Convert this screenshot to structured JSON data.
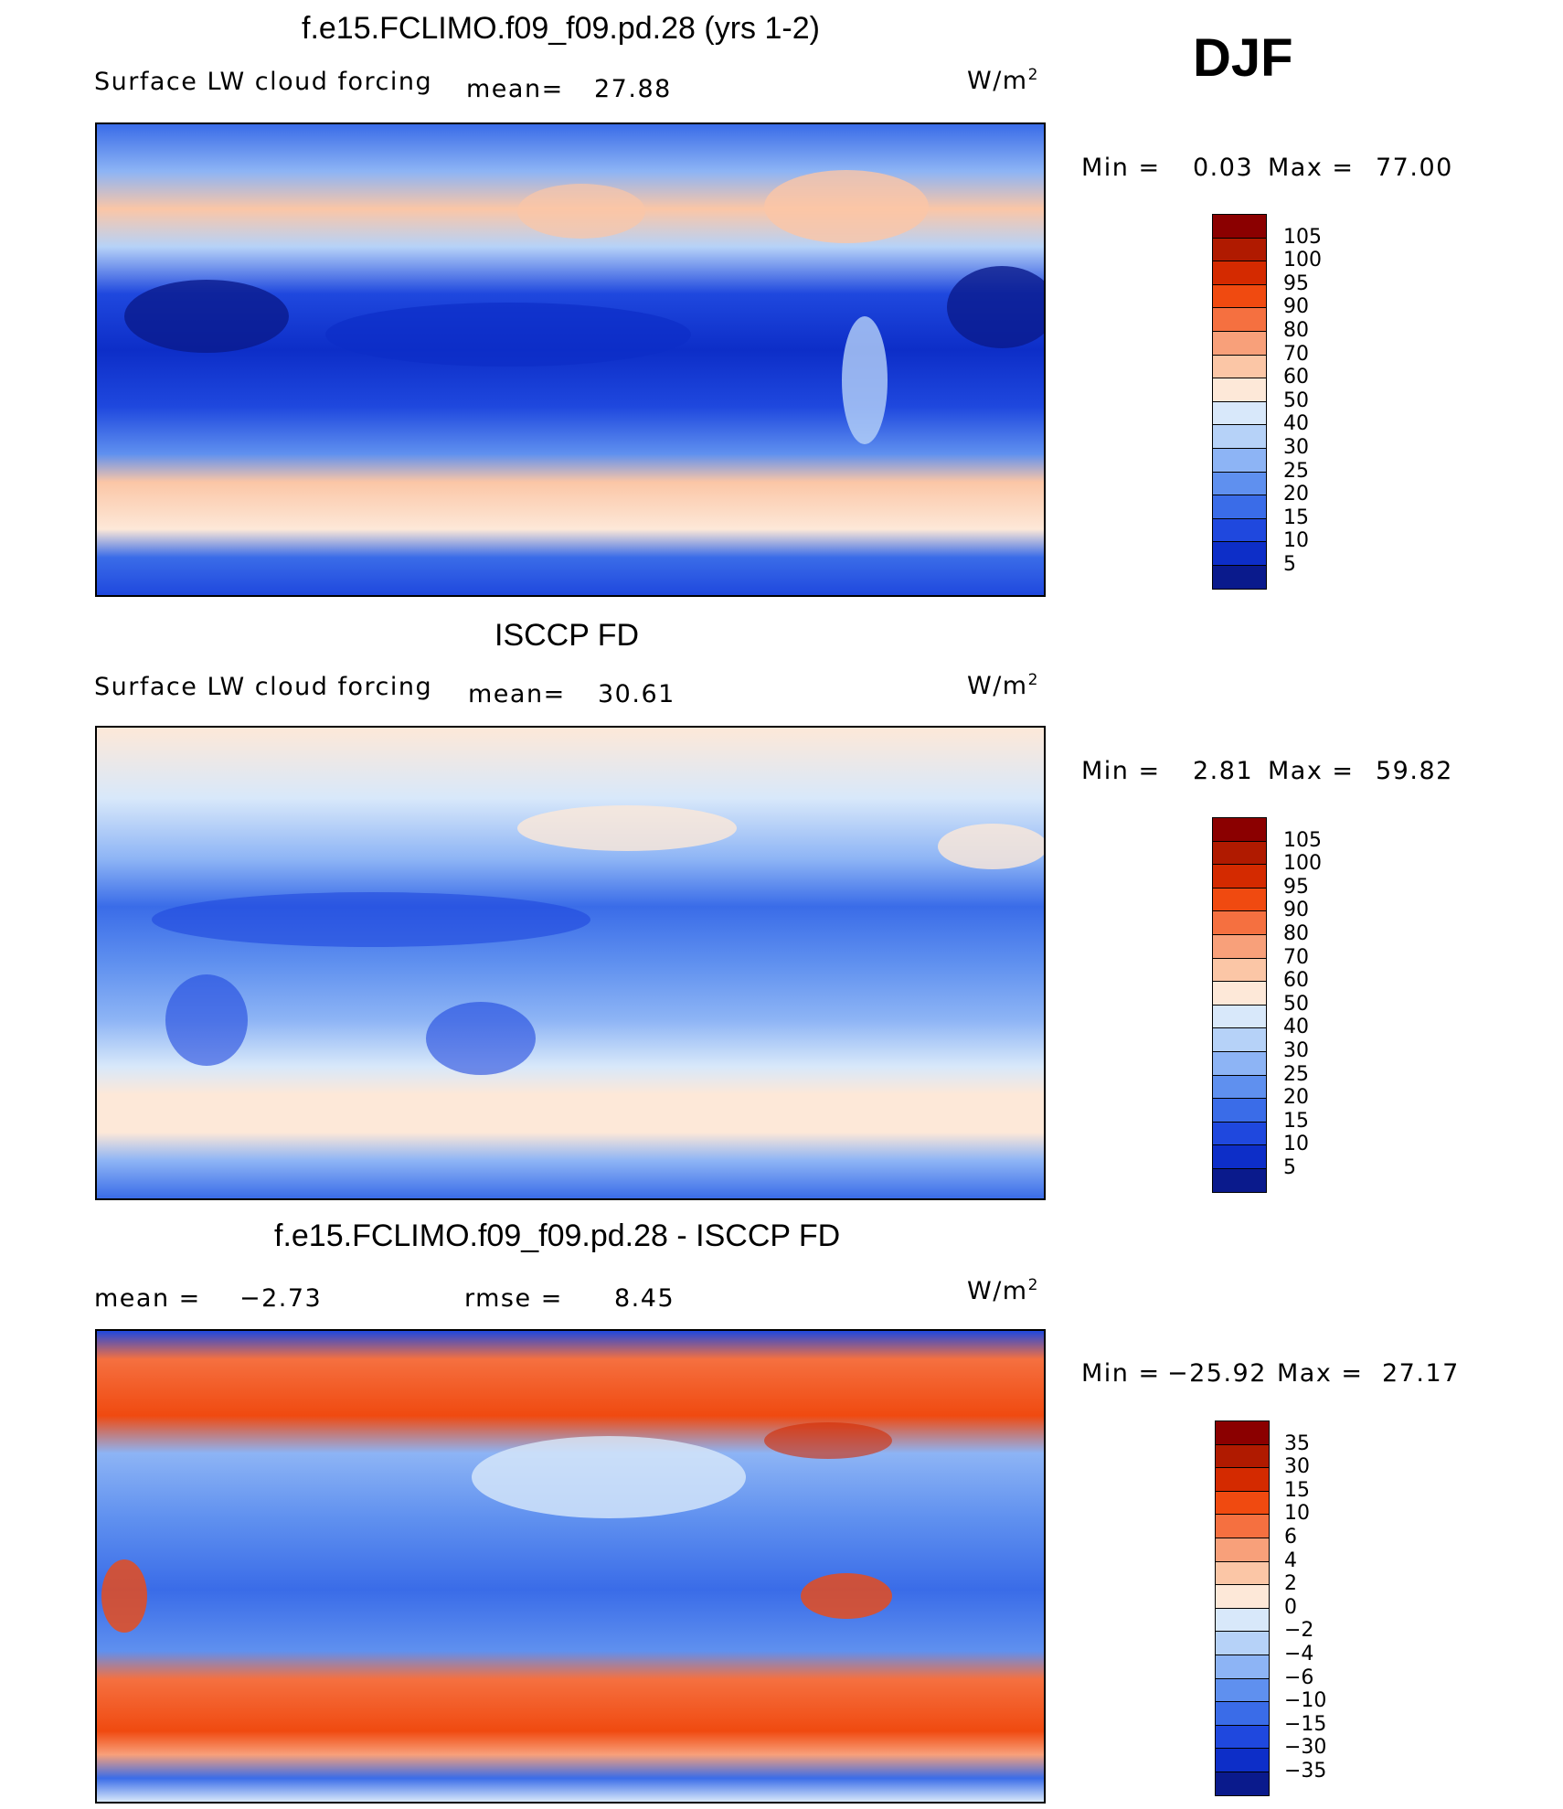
{
  "season": "DJF",
  "panels": [
    {
      "id": "model",
      "title": "f.e15.FCLIMO.f09_f09.pd.28 (yrs 1-2)",
      "variable": "Surface LW cloud forcing",
      "mean_label": "mean=",
      "mean_value": "27.88",
      "units": "W/m",
      "units_exp": "2",
      "min_label": "Min =",
      "min_value": "0.03",
      "max_label": "Max =",
      "max_value": "77.00",
      "colorbar": "abs"
    },
    {
      "id": "obs",
      "title": "ISCCP FD",
      "variable": "Surface LW cloud forcing",
      "mean_label": "mean=",
      "mean_value": "30.61",
      "units": "W/m",
      "units_exp": "2",
      "min_label": "Min =",
      "min_value": "2.81",
      "max_label": "Max =",
      "max_value": "59.82",
      "colorbar": "abs"
    },
    {
      "id": "diff",
      "title": "f.e15.FCLIMO.f09_f09.pd.28 - ISCCP FD",
      "mean_label": "mean =",
      "mean_value": "−2.73",
      "rmse_label": "rmse =",
      "rmse_value": "8.45",
      "units": "W/m",
      "units_exp": "2",
      "min_label": "Min =",
      "min_value": "−25.92",
      "max_label": "Max =",
      "max_value": "27.17",
      "colorbar": "diff"
    }
  ],
  "colorbars": {
    "abs": {
      "labels": [
        "105",
        "100",
        "95",
        "90",
        "80",
        "70",
        "60",
        "50",
        "40",
        "30",
        "25",
        "20",
        "15",
        "10",
        "5"
      ],
      "colors": [
        "#8b0000",
        "#b01a00",
        "#d42a00",
        "#f04a10",
        "#f57040",
        "#f8a07a",
        "#fbc6a6",
        "#fde8d8",
        "#d8e8fa",
        "#b6d2f8",
        "#8db4f5",
        "#5f90ef",
        "#3a6ce8",
        "#1f48de",
        "#0d2ec8",
        "#0a1a8c"
      ]
    },
    "diff": {
      "labels": [
        "35",
        "30",
        "15",
        "10",
        "6",
        "4",
        "2",
        "0",
        "−2",
        "−4",
        "−6",
        "−10",
        "−15",
        "−30",
        "−35"
      ],
      "colors": [
        "#8b0000",
        "#b01a00",
        "#d42a00",
        "#f04a10",
        "#f57040",
        "#f8a07a",
        "#fbc6a6",
        "#fde8d8",
        "#d8e8fa",
        "#b6d2f8",
        "#8db4f5",
        "#5f90ef",
        "#3a6ce8",
        "#1f48de",
        "#0d2ec8",
        "#0a1a8c"
      ]
    }
  },
  "chart_data": [
    {
      "type": "heatmap",
      "title": "f.e15.FCLIMO.f09_f09.pd.28 (yrs 1-2)",
      "variable": "Surface LW cloud forcing",
      "units": "W/m2",
      "mean": 27.88,
      "min": 0.03,
      "max": 77.0,
      "levels": [
        5,
        10,
        15,
        20,
        25,
        30,
        40,
        50,
        60,
        70,
        80,
        90,
        95,
        100,
        105
      ]
    },
    {
      "type": "heatmap",
      "title": "ISCCP FD",
      "variable": "Surface LW cloud forcing",
      "units": "W/m2",
      "mean": 30.61,
      "min": 2.81,
      "max": 59.82,
      "levels": [
        5,
        10,
        15,
        20,
        25,
        30,
        40,
        50,
        60,
        70,
        80,
        90,
        95,
        100,
        105
      ]
    },
    {
      "type": "heatmap",
      "title": "f.e15.FCLIMO.f09_f09.pd.28 - ISCCP FD",
      "units": "W/m2",
      "mean": -2.73,
      "rmse": 8.45,
      "min": -25.92,
      "max": 27.17,
      "levels": [
        -35,
        -30,
        -15,
        -10,
        -6,
        -4,
        -2,
        0,
        2,
        4,
        6,
        10,
        15,
        30,
        35
      ]
    }
  ]
}
